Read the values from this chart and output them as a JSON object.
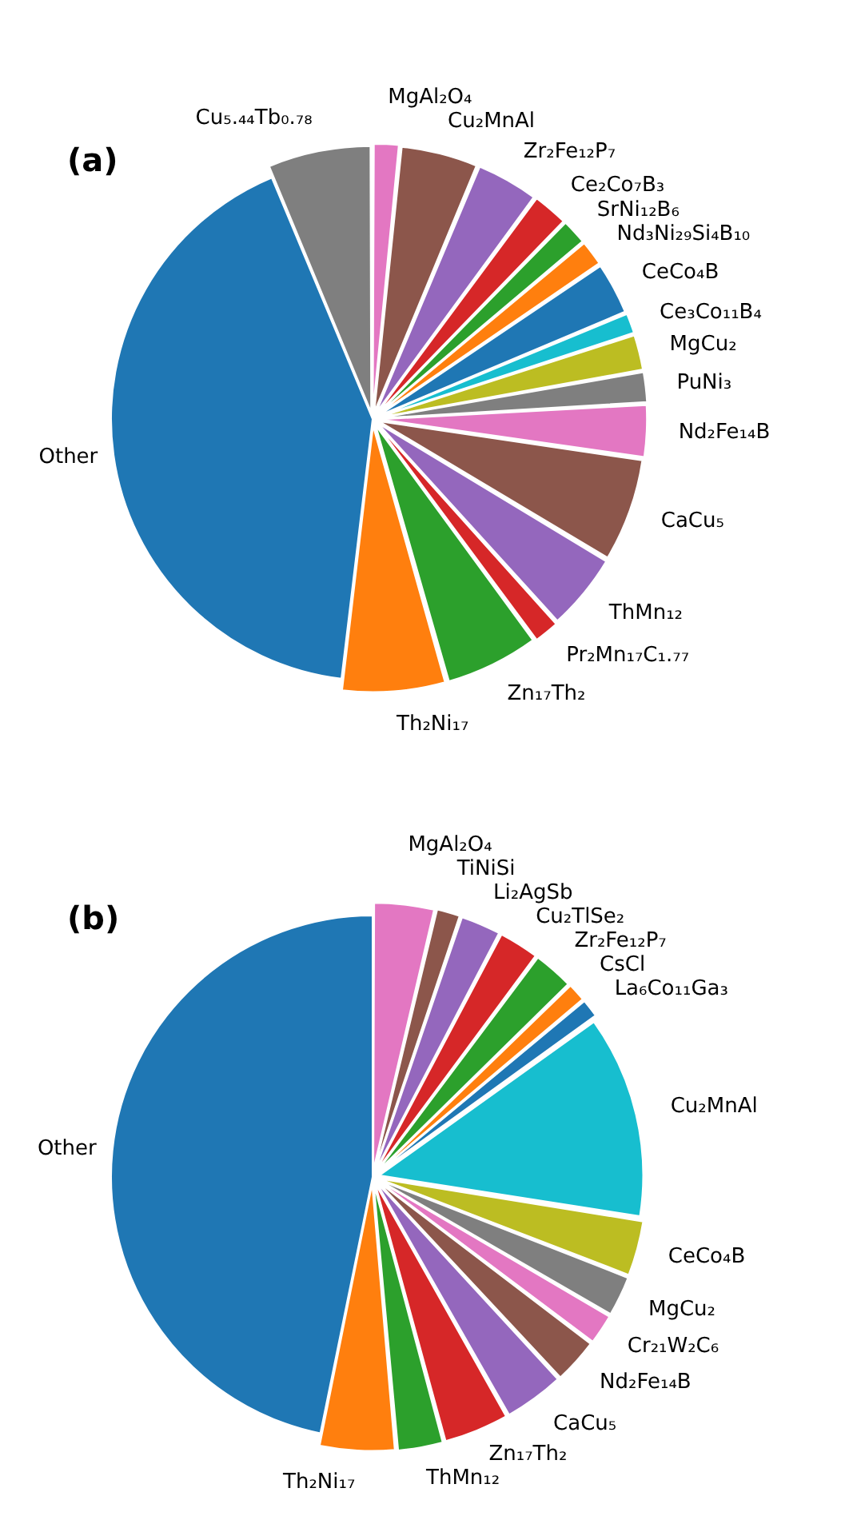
{
  "chart_data": [
    {
      "type": "pie",
      "title": "(a)",
      "legend": false,
      "categories": [
        "MgAl₂O₄",
        "Cu₂MnAl",
        "Zr₂Fe₁₂P₇",
        "Ce₂Co₇B₃",
        "SrNi₁₂B₆",
        "Nd₃Ni₂₉Si₄B₁₀",
        "CeCo₄B",
        "Ce₃Co₁₁B₄",
        "MgCu₂",
        "PuNi₃",
        "Nd₂Fe₁₄B",
        "CaCu₅",
        "ThMn₁₂",
        "Pr₂Mn₁₇C₁.₇₇",
        "Zn₁₇Th₂",
        "Th₂Ni₁₇",
        "Other",
        "Cu₅.₄₄Tb₀.₇₈"
      ],
      "values": [
        1.6,
        4.7,
        3.8,
        2.2,
        1.6,
        1.6,
        3.2,
        1.3,
        2.2,
        1.9,
        3.2,
        6.3,
        4.7,
        1.6,
        5.7,
        6.3,
        41.8,
        6.3
      ],
      "colors": [
        "#e377c2",
        "#8c564b",
        "#9467bd",
        "#d62728",
        "#2ca02c",
        "#ff7f0e",
        "#1f77b4",
        "#17becf",
        "#bcbd22",
        "#7f7f7f",
        "#e377c2",
        "#8c564b",
        "#9467bd",
        "#d62728",
        "#2ca02c",
        "#ff7f0e",
        "#1f77b4",
        "#7f7f7f"
      ]
    },
    {
      "type": "pie",
      "title": "(b)",
      "legend": false,
      "categories": [
        "MgAl₂O₄",
        "TiNiSi",
        "Li₂AgSb",
        "Cu₂TlSe₂",
        "Zr₂Fe₁₂P₇",
        "CsCl",
        "La₆Co₁₁Ga₃",
        "Cu₂MnAl",
        "CeCo₄B",
        "MgCu₂",
        "Cr₂₁W₂C₆",
        "Nd₂Fe₁₄B",
        "CaCu₅",
        "Zn₁₇Th₂",
        "ThMn₁₂",
        "Th₂Ni₁₇",
        "Other"
      ],
      "values": [
        3.7,
        1.5,
        2.5,
        2.5,
        2.5,
        1.2,
        1.2,
        12.4,
        3.4,
        2.5,
        1.9,
        2.8,
        3.7,
        4.0,
        2.8,
        4.6,
        46.8
      ],
      "colors": [
        "#e377c2",
        "#8c564b",
        "#9467bd",
        "#d62728",
        "#2ca02c",
        "#ff7f0e",
        "#1f77b4",
        "#17becf",
        "#bcbd22",
        "#7f7f7f",
        "#e377c2",
        "#8c564b",
        "#9467bd",
        "#d62728",
        "#2ca02c",
        "#ff7f0e",
        "#1f77b4"
      ]
    }
  ]
}
